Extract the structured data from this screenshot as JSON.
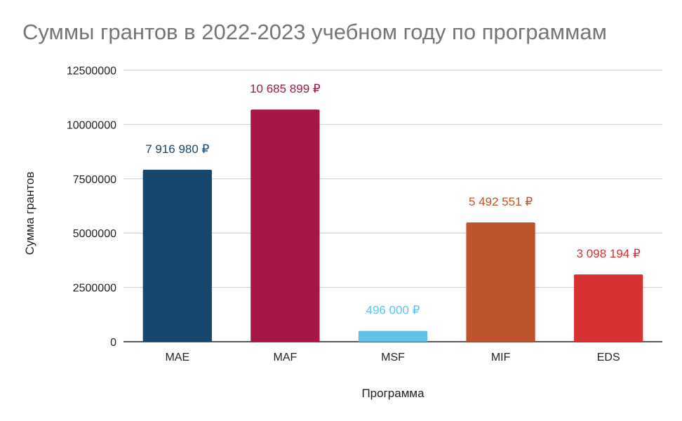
{
  "chart_data": {
    "type": "bar",
    "title": "Суммы грантов в 2022-2023 учебном году по программам",
    "xlabel": "Программа",
    "ylabel": "Сумма грантов",
    "categories": [
      "MAE",
      "MAF",
      "MSF",
      "MIF",
      "EDS"
    ],
    "values": [
      7916980,
      10685899,
      496000,
      5492551,
      3098194
    ],
    "data_labels": [
      "7 916 980 ₽",
      "10 685 899 ₽",
      "496 000 ₽",
      "5 492 551 ₽",
      "3 098 194 ₽"
    ],
    "colors": [
      "#15466e",
      "#a51646",
      "#63c0ec",
      "#bf542c",
      "#d63232"
    ],
    "ylim": [
      0,
      12500000
    ],
    "yticks": [
      0,
      2500000,
      5000000,
      7500000,
      10000000,
      12500000
    ],
    "ytick_labels": [
      "0",
      "2500000",
      "5000000",
      "7500000",
      "10000000",
      "12500000"
    ],
    "grid": true,
    "legend": "none"
  }
}
